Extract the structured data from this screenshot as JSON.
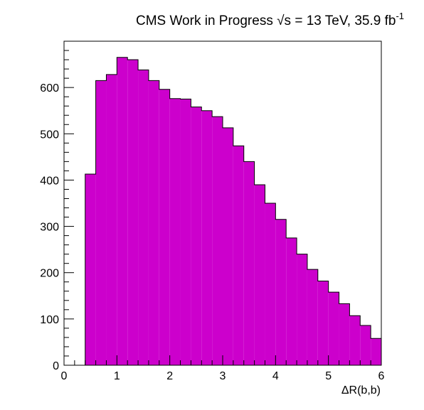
{
  "chart_data": {
    "type": "bar",
    "title": {
      "prefix": "CMS Work in Progress",
      "sqrt": "√s",
      "energy": "= 13 TeV, 35.9 fb",
      "exponent": "-1"
    },
    "xlabel": "ΔR(b,b)",
    "ylabel": "",
    "xlim": [
      0,
      6
    ],
    "ylim": [
      0,
      700
    ],
    "x_ticks": [
      "0",
      "1",
      "2",
      "3",
      "4",
      "5",
      "6"
    ],
    "y_ticks": [
      "0",
      "100",
      "200",
      "300",
      "400",
      "500",
      "600"
    ],
    "bin_width": 0.2,
    "bins_start": 0.4,
    "values": [
      413,
      615,
      628,
      665,
      660,
      638,
      615,
      596,
      576,
      575,
      558,
      550,
      537,
      513,
      474,
      440,
      390,
      350,
      315,
      275,
      240,
      207,
      182,
      158,
      133,
      107,
      86,
      58
    ],
    "fill_color": "#cc00cc",
    "edge_color": "#000000",
    "grid": false,
    "legend": "none"
  }
}
